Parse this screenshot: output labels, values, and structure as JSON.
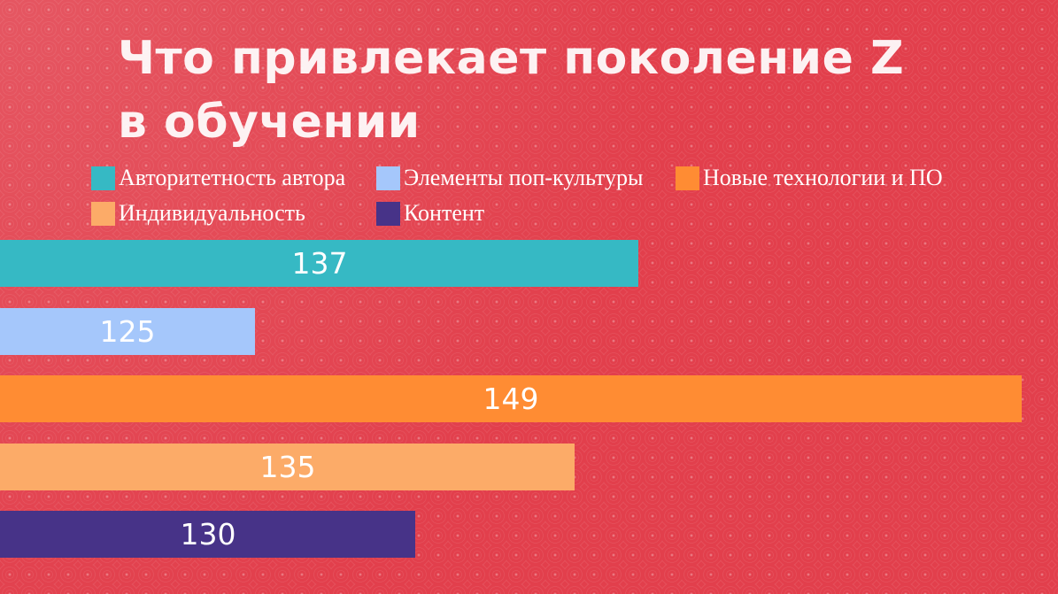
{
  "chart_data": {
    "type": "bar",
    "orientation": "horizontal",
    "title": "Что привлекает поколение Z в обучении",
    "title_lines": [
      "Что привлекает поколение Z",
      "в обучении"
    ],
    "categories": [
      "Авторитетность автора",
      "Элементы поп-культуры",
      "Новые технологии и ПО",
      "Индивидуальность",
      "Контент"
    ],
    "values": [
      137,
      125,
      149,
      135,
      130
    ],
    "colors": [
      "#36b9c4",
      "#a5c7fb",
      "#ff8c33",
      "#fcab68",
      "#473388"
    ],
    "value_labels": [
      "137",
      "125",
      "149",
      "135",
      "130"
    ],
    "legend": {
      "position": "top",
      "entries": [
        {
          "label": "Авторитетность автора",
          "color": "#36b9c4"
        },
        {
          "label": "Элементы поп-культуры",
          "color": "#a5c7fb"
        },
        {
          "label": "Новые технологии и ПО",
          "color": "#ff8c33"
        },
        {
          "label": "Индивидуальность",
          "color": "#fcab68"
        },
        {
          "label": "Контент",
          "color": "#473388"
        }
      ]
    },
    "xlim": [
      117,
      150
    ],
    "grid": false,
    "xlabel": "",
    "ylabel": ""
  },
  "background_color": "#e23f4c"
}
